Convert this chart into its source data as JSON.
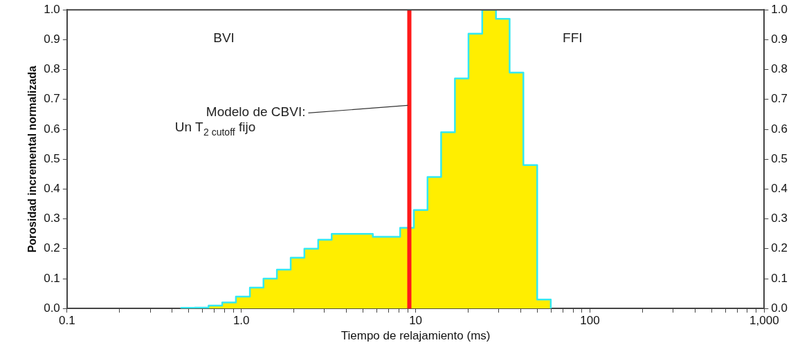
{
  "chart_data": {
    "type": "histogram",
    "xlabel": "Tiempo de relajamiento (ms)",
    "ylabel": "Porosidad incremental normalizada",
    "bins": [
      0.452,
      0.541,
      0.649,
      0.777,
      0.931,
      1.12,
      1.34,
      1.6,
      1.92,
      2.3,
      2.76,
      3.3,
      3.96,
      4.74,
      5.68,
      6.81,
      8.15,
      9.77,
      11.7,
      14.0,
      16.8,
      20.1,
      24.1,
      28.9,
      34.6,
      41.5,
      49.8,
      59.6
    ],
    "values": [
      0.002,
      0.003,
      0.01,
      0.02,
      0.04,
      0.07,
      0.1,
      0.13,
      0.17,
      0.2,
      0.23,
      0.25,
      0.25,
      0.25,
      0.24,
      0.24,
      0.27,
      0.33,
      0.44,
      0.59,
      0.77,
      0.92,
      1.0,
      0.97,
      0.79,
      0.48,
      0.03
    ],
    "color": "#ffee00",
    "log": "x",
    "xlim": [
      0.1,
      1000
    ],
    "xticks": [
      0.1,
      {
        "value": 0.2,
        "label": null
      },
      {
        "value": 0.3,
        "label": null
      },
      {
        "value": 0.4,
        "label": null
      },
      {
        "value": 0.5,
        "label": null
      },
      {
        "value": 0.6,
        "label": null
      },
      {
        "value": 0.7,
        "label": null
      },
      {
        "value": 0.8,
        "label": null
      },
      {
        "value": 0.9,
        "label": null
      },
      {
        "value": 1,
        "label": "1.0"
      },
      {
        "value": 2,
        "label": null
      },
      {
        "value": 3,
        "label": null
      },
      {
        "value": 4,
        "label": null
      },
      {
        "value": 5,
        "label": null
      },
      {
        "value": 6,
        "label": null
      },
      {
        "value": 7,
        "label": null
      },
      {
        "value": 8,
        "label": null
      },
      {
        "value": 9,
        "label": null
      },
      10,
      {
        "value": 20,
        "label": null
      },
      {
        "value": 30,
        "label": null
      },
      {
        "value": 40,
        "label": null
      },
      {
        "value": 50,
        "label": null
      },
      {
        "value": 60,
        "label": null
      },
      {
        "value": 70,
        "label": null
      },
      {
        "value": 80,
        "label": null
      },
      {
        "value": 90,
        "label": null
      },
      100,
      {
        "value": 200,
        "label": null
      },
      {
        "value": 300,
        "label": null
      },
      {
        "value": 400,
        "label": null
      },
      {
        "value": 500,
        "label": null
      },
      {
        "value": 600,
        "label": null
      },
      {
        "value": 700,
        "label": null
      },
      {
        "value": 800,
        "label": null
      },
      {
        "value": 900,
        "label": null
      },
      {
        "value": 1000,
        "label": "1,000"
      }
    ],
    "ylim": [
      0,
      1
    ],
    "yticks": [
      {
        "value": 0,
        "label": "0.0"
      },
      0.1,
      0.2,
      0.3,
      0.4,
      0.5,
      0.6,
      0.7,
      0.8,
      0.9,
      {
        "value": 1,
        "label": "1.0"
      }
    ],
    "y2lim": [
      0,
      1
    ],
    "y2ticks": [
      {
        "value": 0,
        "label": "0.0"
      },
      0.1,
      0.2,
      0.3,
      0.4,
      0.5,
      0.6,
      0.7,
      0.8,
      0.9,
      {
        "value": 1,
        "label": "1.0"
      }
    ],
    "ref_lines": [
      {
        "axis": "x",
        "value": 9.2,
        "color": "#ff1a1a"
      }
    ],
    "annotations": [
      "BVI",
      "FFI",
      {
        "text": "Modelo de CBVI:\nUn T$_{2 cutoff}$ fijo",
        "x": 9.2,
        "y": 0.68
      }
    ],
    "grid": false,
    "legend": false
  }
}
